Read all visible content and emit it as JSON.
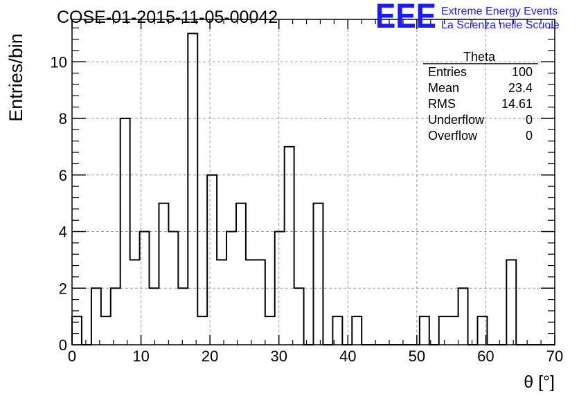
{
  "chart_data": {
    "type": "histogram",
    "title": "COSE-01-2015-11-05-00042",
    "xlabel": "θ [°]",
    "ylabel": "Entries/bin",
    "xlim": [
      0,
      70
    ],
    "ylim": [
      0,
      11.5
    ],
    "grid": true,
    "x_ticks": [
      "0",
      "10",
      "20",
      "30",
      "40",
      "50",
      "60",
      "70"
    ],
    "y_ticks": [
      "0",
      "2",
      "4",
      "6",
      "8",
      "10"
    ],
    "bin_width": 1.4,
    "values": [
      1,
      0,
      2,
      1,
      2,
      8,
      3,
      4,
      2,
      5,
      4,
      2,
      11,
      1,
      6,
      3,
      4,
      5,
      3,
      3,
      1,
      4,
      7,
      2,
      0,
      5,
      0,
      1,
      0,
      1,
      0,
      0,
      0,
      0,
      0,
      0,
      1,
      0,
      1,
      1,
      2,
      0,
      1,
      0,
      0,
      3,
      0,
      0,
      0,
      0
    ]
  },
  "stats_box": {
    "title": "Theta",
    "rows": [
      {
        "label": "Entries",
        "value": "100"
      },
      {
        "label": "Mean",
        "value": "23.4"
      },
      {
        "label": "RMS",
        "value": "14.61"
      },
      {
        "label": "Underflow",
        "value": "0"
      },
      {
        "label": "Overflow",
        "value": "0"
      }
    ]
  },
  "logo": {
    "mark": "EEE",
    "line1": "Extreme Energy Events",
    "line2": "La Scienza nelle Scuole",
    "color": "#1a1aff"
  },
  "colors": {
    "grid": "#9a9a9a",
    "histogram": "#000000"
  }
}
